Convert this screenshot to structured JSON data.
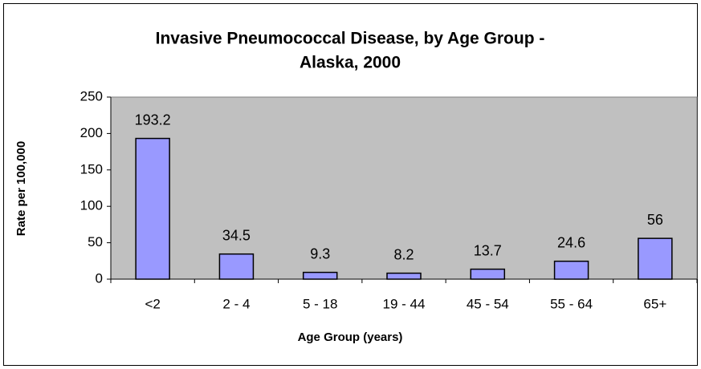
{
  "chart_data": {
    "type": "bar",
    "title": [
      "Invasive Pneumococcal Disease, by Age Group -",
      "Alaska, 2000"
    ],
    "x_label": "Age Group (years)",
    "y_label": "Rate per 100,000",
    "categories": [
      "<2",
      "2 - 4",
      "5 - 18",
      "19 - 44",
      "45 - 54",
      "55 - 64",
      "65+"
    ],
    "values": [
      193.2,
      34.5,
      9.3,
      8.2,
      13.7,
      24.6,
      56
    ],
    "color": "#9999ff",
    "ylim": [
      0,
      250
    ],
    "yticks": [
      0,
      50,
      100,
      150,
      200,
      250
    ],
    "grid": false,
    "plot_background": "#c0c0c0"
  }
}
